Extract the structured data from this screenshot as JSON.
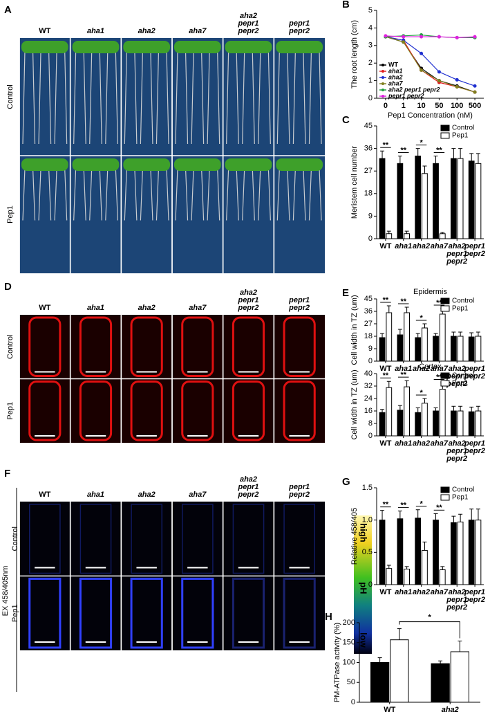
{
  "image_panels": [
    {
      "letter": "A",
      "columns": [
        "WT",
        "aha1",
        "aha2",
        "aha7",
        "aha2 pepr1 pepr2",
        "pepr1 pepr2"
      ],
      "rows": [
        "Control",
        "Pep1"
      ]
    },
    {
      "letter": "D",
      "columns": [
        "WT",
        "aha1",
        "aha2",
        "aha7",
        "aha2 pepr1 pepr2",
        "pepr1 pepr2"
      ],
      "rows": [
        "Control",
        "Pep1"
      ]
    },
    {
      "letter": "F",
      "columns": [
        "WT",
        "aha1",
        "aha2",
        "aha7",
        "aha2 pepr1 pepr2",
        "pepr1 pepr2"
      ],
      "rows": [
        "Control",
        "Pep1"
      ],
      "side_label": "EX 458/405nm",
      "colorbar": {
        "top": "high",
        "middle": "pH",
        "bottom": "low"
      }
    }
  ],
  "chart_data": [
    {
      "type": "line",
      "panel": "B",
      "ylabel": "The root  length (cm)",
      "xlabel": "Pep1  Concentration (nM)",
      "categories": [
        "0",
        "1",
        "10",
        "50",
        "100",
        "500"
      ],
      "ylim": [
        0,
        5
      ],
      "yticks": [
        0,
        1,
        2,
        3,
        4,
        5
      ],
      "legend": "lower left",
      "series": [
        {
          "name": "WT",
          "color": "#000000",
          "values": [
            3.5,
            3.2,
            1.7,
            1.0,
            0.7,
            0.35
          ]
        },
        {
          "name": "aha1",
          "color": "#e02020",
          "values": [
            3.5,
            3.3,
            1.6,
            0.9,
            0.65,
            0.35
          ]
        },
        {
          "name": "aha2",
          "color": "#2030d0",
          "values": [
            3.5,
            3.3,
            2.55,
            1.5,
            1.05,
            0.7
          ]
        },
        {
          "name": "aha7",
          "color": "#808020",
          "values": [
            3.5,
            3.2,
            1.6,
            1.0,
            0.65,
            0.35
          ]
        },
        {
          "name": "aha2 pepr1 pepr2",
          "color": "#20a040",
          "values": [
            3.5,
            3.55,
            3.6,
            3.5,
            3.45,
            3.45
          ]
        },
        {
          "name": "pepr1 pepr2",
          "color": "#e020e0",
          "values": [
            3.55,
            3.5,
            3.5,
            3.5,
            3.45,
            3.5
          ]
        }
      ]
    },
    {
      "type": "bar",
      "panel": "C",
      "ylabel": "Meristem cell number",
      "categories": [
        "WT",
        "aha1",
        "aha2",
        "aha7",
        "aha2 pepr1 pepr2",
        "pepr1 pepr2"
      ],
      "ylim": [
        0,
        45
      ],
      "yticks": [
        0,
        9,
        18,
        27,
        36,
        45
      ],
      "legend": "upper right",
      "series": [
        {
          "name": "Control",
          "color": "#000000",
          "values": [
            32,
            30,
            33,
            30,
            32,
            31
          ],
          "errors": [
            3,
            3,
            3,
            3,
            4,
            3
          ]
        },
        {
          "name": "Pep1",
          "color": "#ffffff",
          "values": [
            2,
            2,
            26,
            2,
            32,
            30
          ],
          "errors": [
            1,
            1,
            3,
            0.5,
            4,
            4
          ]
        }
      ],
      "annotations": [
        {
          "index": 0,
          "text": "**"
        },
        {
          "index": 1,
          "text": "**"
        },
        {
          "index": 2,
          "text": "*"
        },
        {
          "index": 3,
          "text": "**"
        }
      ]
    },
    {
      "type": "bar",
      "panel": "E",
      "title": "Epidermis",
      "ylabel": "Cell width in TZ (um)",
      "categories": [
        "WT",
        "aha1",
        "aha2",
        "aha7",
        "aha2 pepr1 pepr2",
        "pepr1 pepr2"
      ],
      "ylim": [
        0,
        45
      ],
      "yticks": [
        0,
        9,
        18,
        27,
        36,
        45
      ],
      "legend": "upper right",
      "series": [
        {
          "name": "Control",
          "color": "#000000",
          "values": [
            17,
            19,
            17,
            18,
            18,
            17.5
          ],
          "errors": [
            3,
            4,
            3,
            2,
            3,
            3
          ]
        },
        {
          "name": "Pep1",
          "color": "#ffffff",
          "values": [
            35,
            35,
            24,
            34,
            18,
            18
          ],
          "errors": [
            5,
            4,
            3,
            4,
            3,
            3
          ]
        }
      ],
      "annotations": [
        {
          "index": 0,
          "text": "**"
        },
        {
          "index": 1,
          "text": "**"
        },
        {
          "index": 2,
          "text": "*"
        },
        {
          "index": 3,
          "text": "**"
        }
      ]
    },
    {
      "type": "bar",
      "title": "Cortex",
      "ylabel": "Cell width in TZ (um)",
      "categories": [
        "WT",
        "aha1",
        "aha2",
        "aha7",
        "aha2 pepr1 pepr2",
        "pepr1 pepr2"
      ],
      "ylim": [
        0,
        40
      ],
      "yticks": [
        0,
        8,
        16,
        24,
        32,
        40
      ],
      "legend": "upper right",
      "series": [
        {
          "name": "Control",
          "color": "#000000",
          "values": [
            15,
            16.5,
            15,
            16,
            16,
            15.5
          ],
          "errors": [
            2,
            3,
            3,
            2,
            3,
            3
          ]
        },
        {
          "name": "Pep1",
          "color": "#ffffff",
          "values": [
            31,
            31.5,
            21,
            30,
            16,
            16
          ],
          "errors": [
            4,
            4,
            3,
            4,
            3,
            3
          ]
        }
      ],
      "annotations": [
        {
          "index": 0,
          "text": "**"
        },
        {
          "index": 1,
          "text": "**"
        },
        {
          "index": 2,
          "text": "*"
        },
        {
          "index": 3,
          "text": "**"
        }
      ]
    },
    {
      "type": "bar",
      "panel": "G",
      "ylabel": "Relative 458/405",
      "categories": [
        "WT",
        "aha1",
        "aha2",
        "aha7",
        "aha2 pepr1 pepr2",
        "pepr1 pepr2"
      ],
      "ylim": [
        0,
        1.5
      ],
      "yticks": [
        0,
        0.5,
        {
          "value": 1,
          "label": "1.0"
        },
        1.5
      ],
      "legend": "upper right",
      "series": [
        {
          "name": "Control",
          "color": "#000000",
          "values": [
            1.0,
            1.02,
            1.03,
            1.0,
            0.96,
            1.0
          ],
          "errors": [
            0.15,
            0.12,
            0.13,
            0.1,
            0.1,
            0.17
          ]
        },
        {
          "name": "Pep1",
          "color": "#ffffff",
          "values": [
            0.25,
            0.24,
            0.53,
            0.23,
            0.97,
            1.0
          ],
          "errors": [
            0.05,
            0.04,
            0.13,
            0.05,
            0.12,
            0.17
          ]
        }
      ],
      "annotations": [
        {
          "index": 0,
          "text": "**"
        },
        {
          "index": 1,
          "text": "**"
        },
        {
          "index": 2,
          "text": "*"
        },
        {
          "index": 3,
          "text": "**"
        }
      ]
    },
    {
      "type": "bar",
      "panel": "H",
      "ylabel": "PM-ATPase activity (%)",
      "categories": [
        "WT",
        "aha2"
      ],
      "ylim": [
        0,
        200
      ],
      "yticks": [
        0,
        50,
        100,
        150,
        200
      ],
      "series": [
        {
          "name": "Control",
          "color": "#000000",
          "values": [
            100,
            97
          ],
          "errors": [
            12,
            7
          ]
        },
        {
          "name": "Pep1",
          "color": "#ffffff",
          "values": [
            157,
            127
          ],
          "errors": [
            28,
            27
          ]
        }
      ],
      "bracket": {
        "from": 0,
        "to": 1,
        "text": "*"
      }
    }
  ]
}
